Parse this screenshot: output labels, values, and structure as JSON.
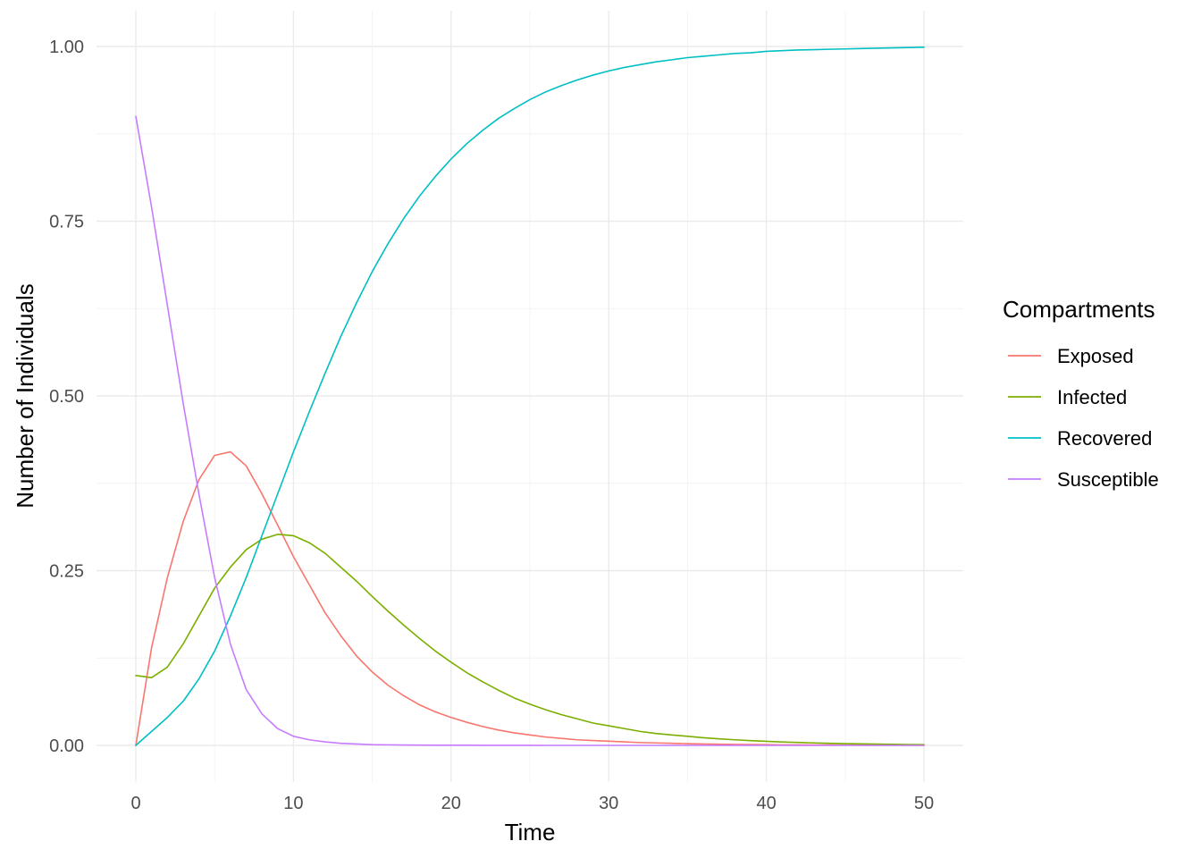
{
  "chart_data": {
    "type": "line",
    "title": "",
    "xlabel": "Time",
    "ylabel": "Number of Individuals",
    "xlim": [
      0,
      50
    ],
    "ylim": [
      0,
      1
    ],
    "x_ticks": [
      0,
      10,
      20,
      30,
      40,
      50
    ],
    "x_tick_labels": [
      "0",
      "10",
      "20",
      "30",
      "40",
      "50"
    ],
    "y_ticks": [
      0,
      0.25,
      0.5,
      0.75,
      1.0
    ],
    "y_tick_labels": [
      "0.00",
      "0.25",
      "0.50",
      "0.75",
      "1.00"
    ],
    "grid": true,
    "legend": {
      "title": "Compartments",
      "placement": "right"
    },
    "x": [
      0,
      1,
      2,
      3,
      4,
      5,
      6,
      7,
      8,
      9,
      10,
      11,
      12,
      13,
      14,
      15,
      16,
      17,
      18,
      19,
      20,
      21,
      22,
      23,
      24,
      25,
      26,
      27,
      28,
      29,
      30,
      31,
      32,
      33,
      34,
      35,
      36,
      37,
      38,
      39,
      40,
      41,
      42,
      43,
      44,
      45,
      46,
      47,
      48,
      49,
      50
    ],
    "series": [
      {
        "name": "Exposed",
        "color": "#F8766D",
        "values": [
          0.0,
          0.14,
          0.24,
          0.32,
          0.38,
          0.415,
          0.42,
          0.4,
          0.36,
          0.315,
          0.27,
          0.23,
          0.19,
          0.157,
          0.128,
          0.105,
          0.086,
          0.071,
          0.058,
          0.048,
          0.04,
          0.033,
          0.027,
          0.022,
          0.018,
          0.015,
          0.012,
          0.01,
          0.008,
          0.007,
          0.006,
          0.005,
          0.004,
          0.0035,
          0.003,
          0.0025,
          0.002,
          0.0017,
          0.0014,
          0.0012,
          0.001,
          0.0008,
          0.0007,
          0.0006,
          0.0005,
          0.0004,
          0.0003,
          0.0003,
          0.0002,
          0.0002,
          0.0001
        ]
      },
      {
        "name": "Infected",
        "color": "#7CAE00",
        "values": [
          0.1,
          0.097,
          0.112,
          0.145,
          0.185,
          0.225,
          0.255,
          0.28,
          0.295,
          0.302,
          0.3,
          0.29,
          0.275,
          0.255,
          0.235,
          0.213,
          0.192,
          0.172,
          0.153,
          0.135,
          0.119,
          0.104,
          0.091,
          0.079,
          0.068,
          0.059,
          0.051,
          0.044,
          0.038,
          0.032,
          0.028,
          0.024,
          0.02,
          0.017,
          0.015,
          0.013,
          0.011,
          0.0094,
          0.008,
          0.0068,
          0.0058,
          0.0049,
          0.0042,
          0.0035,
          0.003,
          0.0025,
          0.0021,
          0.0018,
          0.0015,
          0.0012,
          0.001
        ]
      },
      {
        "name": "Recovered",
        "color": "#00BFC4",
        "values": [
          0.0,
          0.02,
          0.04,
          0.063,
          0.095,
          0.135,
          0.185,
          0.24,
          0.3,
          0.36,
          0.42,
          0.477,
          0.532,
          0.585,
          0.633,
          0.678,
          0.718,
          0.754,
          0.786,
          0.814,
          0.839,
          0.861,
          0.88,
          0.897,
          0.911,
          0.924,
          0.935,
          0.944,
          0.952,
          0.959,
          0.965,
          0.97,
          0.974,
          0.978,
          0.981,
          0.984,
          0.986,
          0.988,
          0.99,
          0.991,
          0.993,
          0.994,
          0.995,
          0.9955,
          0.996,
          0.9965,
          0.997,
          0.9975,
          0.998,
          0.9985,
          0.999
        ]
      },
      {
        "name": "Susceptible",
        "color": "#C77CFF",
        "values": [
          0.9,
          0.77,
          0.63,
          0.49,
          0.36,
          0.24,
          0.145,
          0.08,
          0.045,
          0.024,
          0.013,
          0.008,
          0.005,
          0.003,
          0.002,
          0.001,
          0.0008,
          0.0006,
          0.0004,
          0.0003,
          0.0002,
          0.0002,
          0.0001,
          0.0001,
          0.0001,
          0.0001,
          0,
          0,
          0,
          0,
          0,
          0,
          0,
          0,
          0,
          0,
          0,
          0,
          0,
          0,
          0,
          0,
          0,
          0,
          0,
          0,
          0,
          0,
          0,
          0,
          0
        ]
      }
    ]
  }
}
